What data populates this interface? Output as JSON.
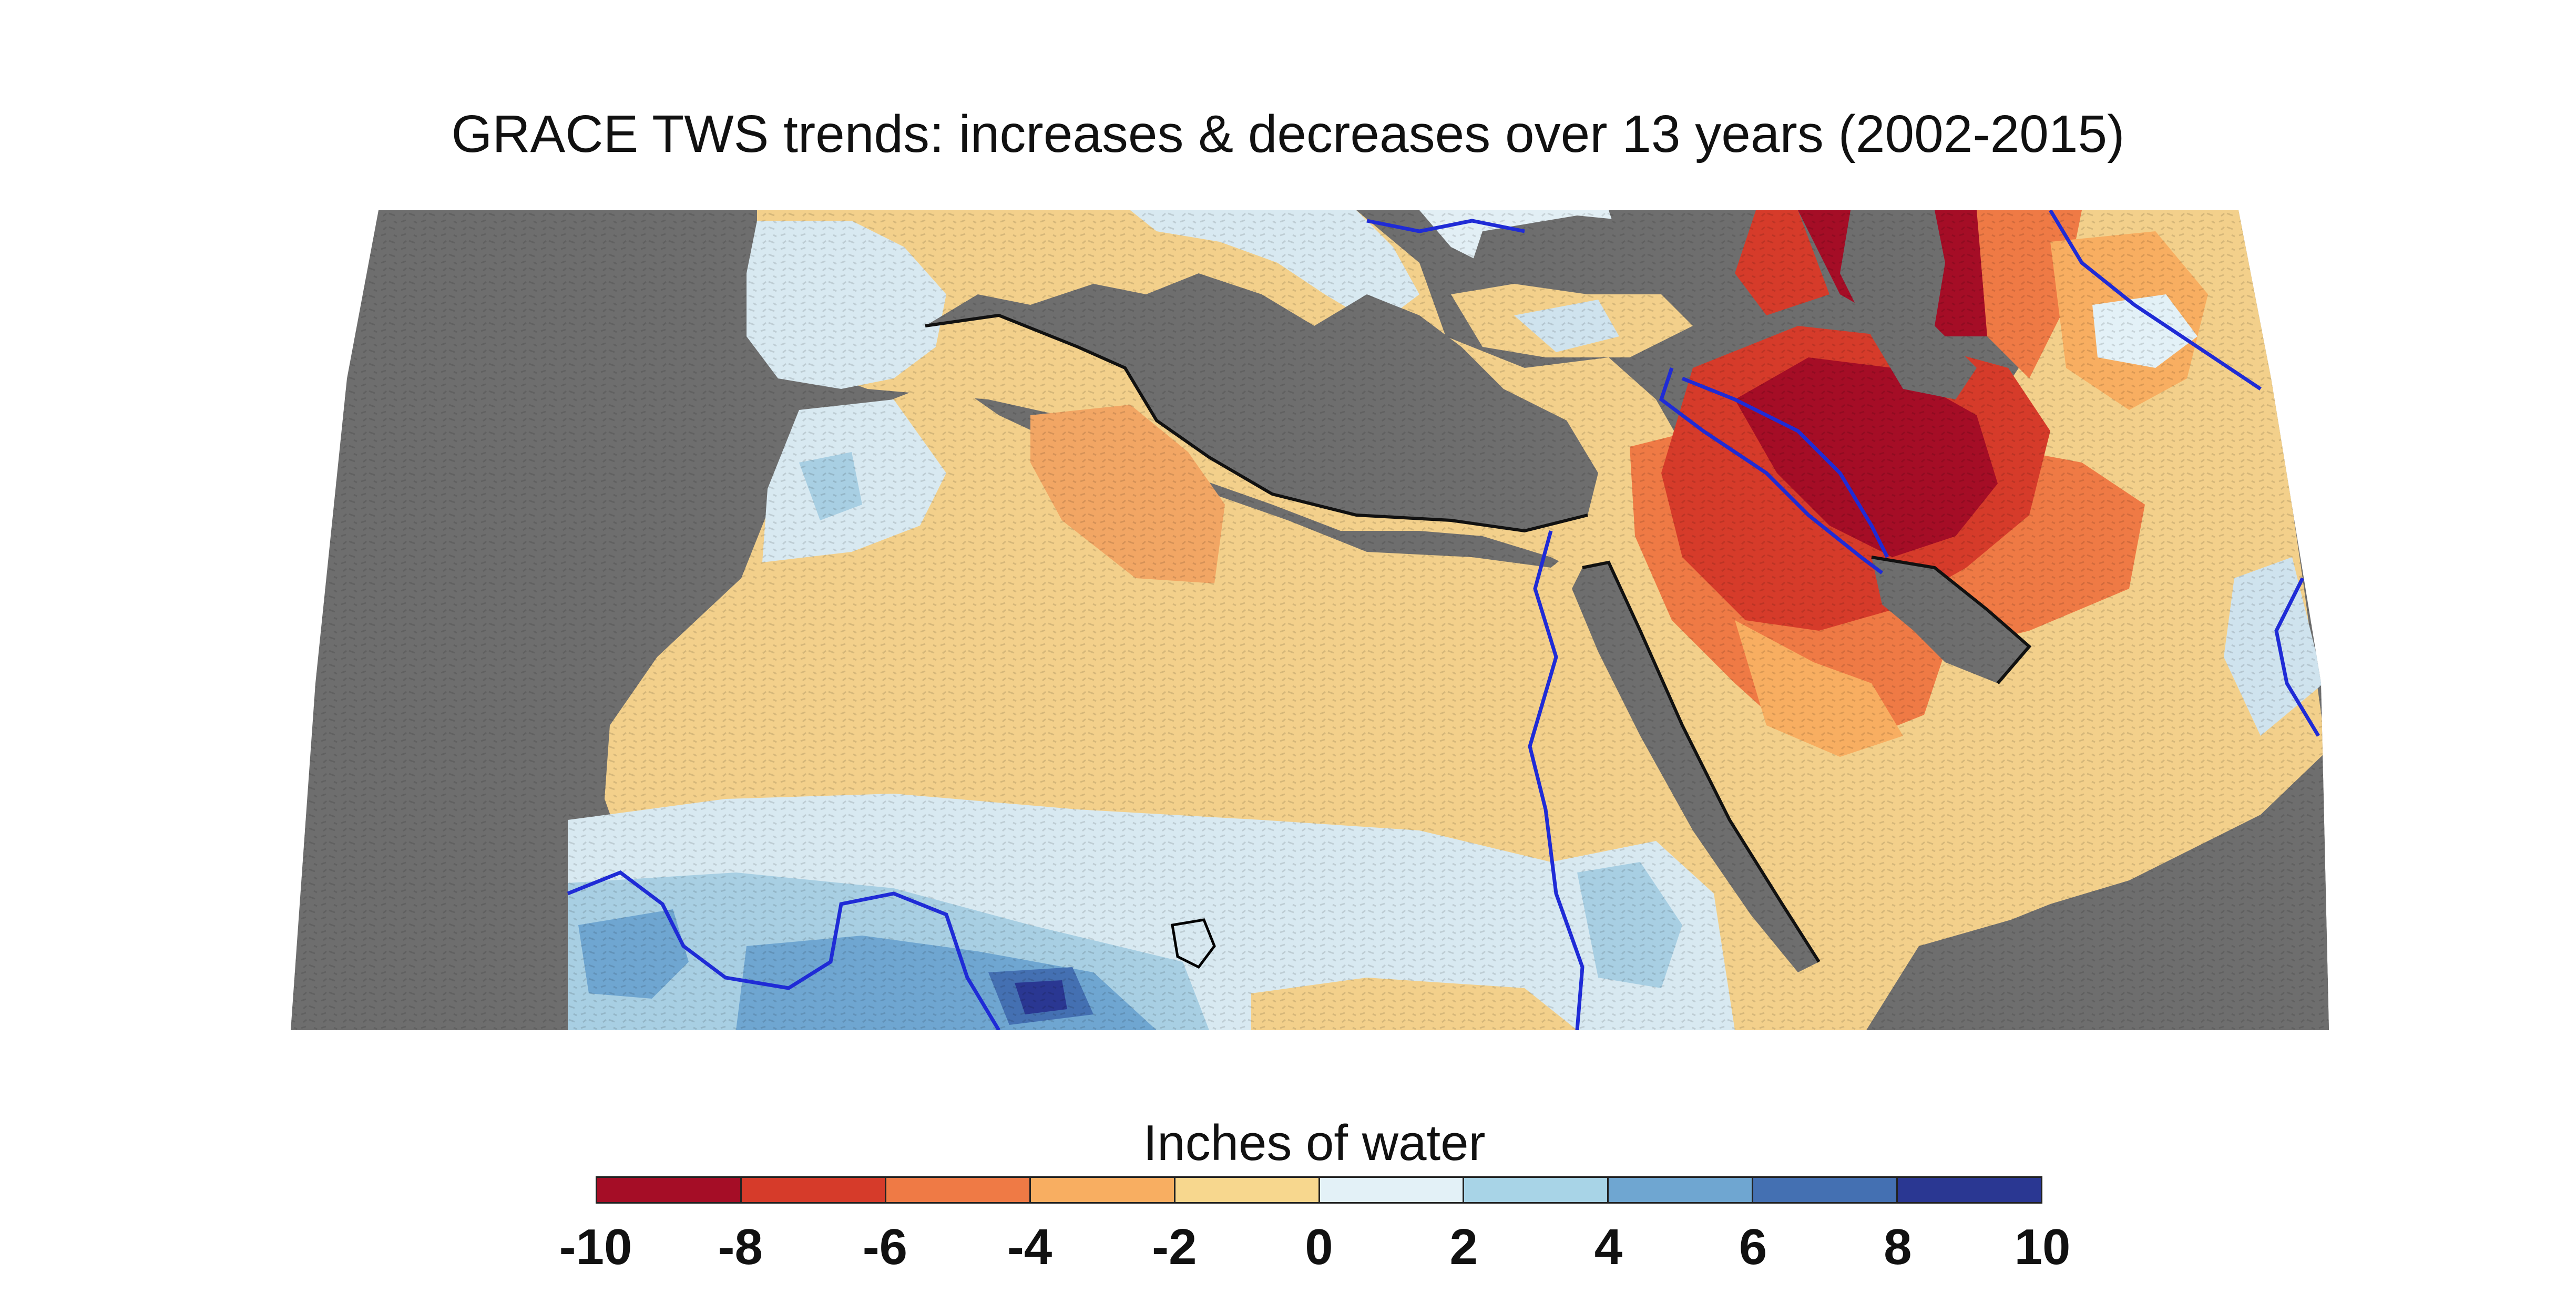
{
  "title": "GRACE TWS trends: increases & decreases over 13 years (2002-2015)",
  "legend": {
    "label": "Inches of water",
    "ticks": [
      "-10",
      "-8",
      "-6",
      "-4",
      "-2",
      "0",
      "2",
      "4",
      "6",
      "8",
      "10"
    ],
    "bins": [
      {
        "range": "-10 to -8",
        "color": "#a50d26"
      },
      {
        "range": "-8 to -6",
        "color": "#d63b2a"
      },
      {
        "range": "-6 to -4",
        "color": "#ef7a45"
      },
      {
        "range": "-4 to -2",
        "color": "#f8ae61"
      },
      {
        "range": "-2 to 0",
        "color": "#f7d78e"
      },
      {
        "range": "0 to 2",
        "color": "#e3f1f7"
      },
      {
        "range": "2 to 4",
        "color": "#a8d4e7"
      },
      {
        "range": "4 to 6",
        "color": "#6fa6d1"
      },
      {
        "range": "6 to 8",
        "color": "#4470b2"
      },
      {
        "range": "8 to 10",
        "color": "#2a3792"
      }
    ]
  },
  "map": {
    "ocean_color": "#6e6e6e",
    "river_color": "#1f2bd6",
    "region": "North Africa and Middle East"
  }
}
